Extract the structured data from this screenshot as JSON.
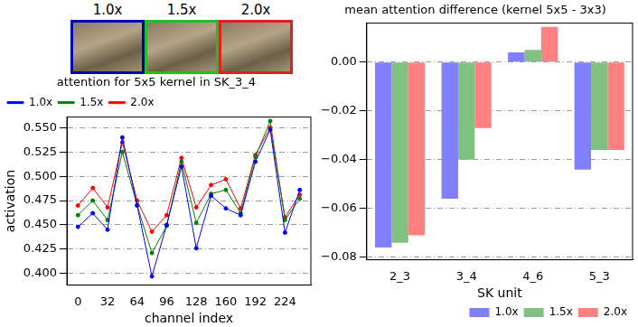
{
  "images": {
    "labels": [
      "1.0x",
      "1.5x",
      "2.0x"
    ],
    "colors": [
      "#0000b0",
      "#20c020",
      "#e02020"
    ]
  },
  "chart_data": [
    {
      "type": "line",
      "title": "attention for 5x5 kernel in SK_3_4",
      "x_label": "channel index",
      "y_label": "activation",
      "x": [
        0,
        16,
        32,
        48,
        64,
        80,
        96,
        112,
        128,
        144,
        160,
        176,
        192,
        208,
        224,
        240
      ],
      "series": [
        {
          "name": "1.0x",
          "color": "#0000ff",
          "marker": "circle",
          "values": [
            0.448,
            0.462,
            0.445,
            0.54,
            0.47,
            0.397,
            0.45,
            0.51,
            0.426,
            0.48,
            0.467,
            0.46,
            0.515,
            0.548,
            0.442,
            0.486
          ]
        },
        {
          "name": "1.5x",
          "color": "#008000",
          "marker": "circle",
          "values": [
            0.46,
            0.475,
            0.455,
            0.525,
            0.47,
            0.421,
            0.449,
            0.515,
            0.452,
            0.482,
            0.486,
            0.462,
            0.52,
            0.557,
            0.455,
            0.477
          ]
        },
        {
          "name": "2.0x",
          "color": "#ff0000",
          "marker": "circle",
          "values": [
            0.47,
            0.488,
            0.468,
            0.535,
            0.475,
            0.443,
            0.46,
            0.519,
            0.468,
            0.491,
            0.497,
            0.467,
            0.522,
            0.55,
            0.458,
            0.481
          ]
        }
      ],
      "xlim": [
        -12,
        252
      ],
      "xticks": [
        0,
        32,
        64,
        96,
        128,
        160,
        192,
        224
      ],
      "ylim": [
        0.388,
        0.561
      ],
      "yticks": [
        {
          "value": 0.4,
          "label": "0.400"
        },
        {
          "value": 0.425,
          "label": "0.425"
        },
        {
          "value": 0.45,
          "label": "0.450"
        },
        {
          "value": 0.475,
          "label": "0.475"
        },
        {
          "value": 0.5,
          "label": "0.500"
        },
        {
          "value": 0.525,
          "label": "0.525"
        },
        {
          "value": 0.55,
          "label": "0.550"
        }
      ],
      "grid": true,
      "legend": "upper left"
    },
    {
      "type": "bar",
      "title": "mean attention difference (kernel 5x5 - 3x3)",
      "x_label": "SK unit",
      "categories": [
        "2_3",
        "3_4",
        "4_6",
        "5_3"
      ],
      "series": [
        {
          "name": "1.0x",
          "color": "#8080ff",
          "values": [
            -0.076,
            -0.056,
            0.004,
            -0.044
          ]
        },
        {
          "name": "1.5x",
          "color": "#80c080",
          "values": [
            -0.074,
            -0.04,
            0.005,
            -0.036
          ]
        },
        {
          "name": "2.0x",
          "color": "#ff8080",
          "values": [
            -0.071,
            -0.027,
            0.0145,
            -0.036
          ]
        }
      ],
      "ylim": [
        -0.081,
        0.016
      ],
      "yticks": [
        {
          "value": -0.08,
          "label": "−0.08"
        },
        {
          "value": -0.06,
          "label": "−0.06"
        },
        {
          "value": -0.04,
          "label": "−0.04"
        },
        {
          "value": -0.02,
          "label": "−0.02"
        },
        {
          "value": 0,
          "label": "0.00"
        }
      ],
      "grid": true,
      "legend": "lower right"
    }
  ]
}
